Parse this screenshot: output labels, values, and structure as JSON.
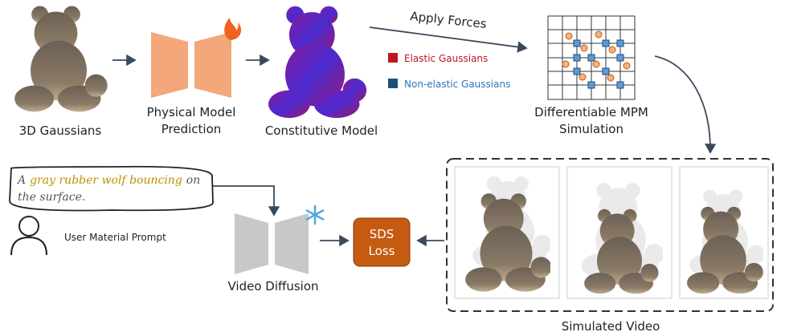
{
  "pipeline_top": {
    "gaussians": {
      "label": "3D Gaussians"
    },
    "physical_model": {
      "label_lines": [
        "Physical Model",
        "Prediction"
      ]
    },
    "constitutive": {
      "label": "Constitutive Model"
    },
    "legend": [
      "Elastic Gaussians",
      "Non-elastic Gaussians"
    ],
    "apply_forces": "Apply Forces",
    "mpm": {
      "label_lines": [
        "Differentiable MPM",
        "Simulation"
      ]
    }
  },
  "pipeline_bottom": {
    "prompt": {
      "lines": [
        [
          "A",
          "gray rubber wolf bouncing",
          "on"
        ],
        [
          "the surface."
        ]
      ]
    },
    "user": "User Material Prompt",
    "video_diffusion": "Video Diffusion",
    "sds_loss": [
      "SDS",
      "Loss"
    ],
    "simulated_video": "Simulated Video"
  }
}
